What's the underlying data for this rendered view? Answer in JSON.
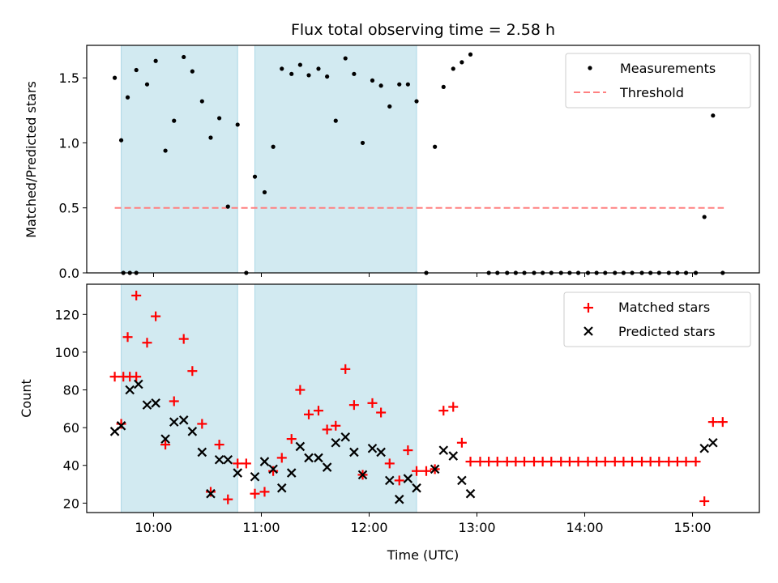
{
  "chart_data": {
    "type": "scatter",
    "title": "Flux total observing time = 2.58 h",
    "xlabel": "Time (UTC)",
    "x_ticks": [
      "10:00",
      "11:00",
      "12:00",
      "13:00",
      "14:00",
      "15:00"
    ],
    "x_tick_hours": [
      10,
      11,
      12,
      13,
      14,
      15
    ],
    "xlim_hours": [
      9.38,
      15.62
    ],
    "shaded_intervals_hours": [
      [
        9.7,
        10.78
      ],
      [
        10.94,
        12.44
      ]
    ],
    "colors": {
      "shade": "#add8e6",
      "threshold": "#ff8080",
      "measurements": "#000000",
      "matched": "#ff0000",
      "predicted": "#000000"
    },
    "top": {
      "ylabel": "Matched/Predicted stars",
      "ylim": [
        0,
        1.75
      ],
      "y_ticks": [
        "0.0",
        "0.5",
        "1.0",
        "1.5"
      ],
      "y_tick_values": [
        0,
        0.5,
        1.0,
        1.5
      ],
      "threshold": {
        "value": 0.5,
        "x_range_hours": [
          9.64,
          15.29
        ]
      },
      "legend": [
        "Measurements",
        "Threshold"
      ],
      "measurements": [
        [
          9.64,
          1.5
        ],
        [
          9.72,
          0.0
        ],
        [
          9.78,
          0.0
        ],
        [
          9.84,
          0.0
        ],
        [
          9.7,
          1.02
        ],
        [
          9.76,
          1.35
        ],
        [
          9.84,
          1.56
        ],
        [
          9.94,
          1.45
        ],
        [
          10.02,
          1.63
        ],
        [
          10.11,
          0.94
        ],
        [
          10.19,
          1.17
        ],
        [
          10.28,
          1.66
        ],
        [
          10.36,
          1.55
        ],
        [
          10.45,
          1.32
        ],
        [
          10.53,
          1.04
        ],
        [
          10.61,
          1.19
        ],
        [
          10.69,
          0.51
        ],
        [
          10.78,
          1.14
        ],
        [
          10.86,
          0.0
        ],
        [
          10.94,
          0.74
        ],
        [
          11.03,
          0.62
        ],
        [
          11.11,
          0.97
        ],
        [
          11.19,
          1.57
        ],
        [
          11.28,
          1.53
        ],
        [
          11.36,
          1.6
        ],
        [
          11.44,
          1.52
        ],
        [
          11.53,
          1.57
        ],
        [
          11.61,
          1.51
        ],
        [
          11.69,
          1.17
        ],
        [
          11.78,
          1.65
        ],
        [
          11.86,
          1.53
        ],
        [
          11.94,
          1.0
        ],
        [
          12.03,
          1.48
        ],
        [
          12.11,
          1.44
        ],
        [
          12.19,
          1.28
        ],
        [
          12.28,
          1.45
        ],
        [
          12.36,
          1.45
        ],
        [
          12.44,
          1.32
        ],
        [
          12.53,
          0.0
        ],
        [
          12.61,
          0.97
        ],
        [
          12.69,
          1.43
        ],
        [
          12.78,
          1.57
        ],
        [
          12.86,
          1.62
        ],
        [
          12.94,
          1.68
        ],
        [
          13.11,
          0.0
        ],
        [
          13.19,
          0.0
        ],
        [
          13.28,
          0.0
        ],
        [
          13.36,
          0.0
        ],
        [
          13.44,
          0.0
        ],
        [
          13.53,
          0.0
        ],
        [
          13.61,
          0.0
        ],
        [
          13.69,
          0.0
        ],
        [
          13.78,
          0.0
        ],
        [
          13.86,
          0.0
        ],
        [
          13.94,
          0.0
        ],
        [
          14.03,
          0.0
        ],
        [
          14.11,
          0.0
        ],
        [
          14.19,
          0.0
        ],
        [
          14.28,
          0.0
        ],
        [
          14.36,
          0.0
        ],
        [
          14.44,
          0.0
        ],
        [
          14.53,
          0.0
        ],
        [
          14.61,
          0.0
        ],
        [
          14.69,
          0.0
        ],
        [
          14.78,
          0.0
        ],
        [
          14.86,
          0.0
        ],
        [
          14.94,
          0.0
        ],
        [
          15.03,
          0.0
        ],
        [
          15.11,
          0.43
        ],
        [
          15.19,
          1.21
        ],
        [
          15.28,
          0.0
        ]
      ]
    },
    "bottom": {
      "ylabel": "Count",
      "ylim": [
        15,
        136
      ],
      "y_ticks": [
        "20",
        "40",
        "60",
        "80",
        "100",
        "120"
      ],
      "y_tick_values": [
        20,
        40,
        60,
        80,
        100,
        120
      ],
      "legend": [
        "Matched stars",
        "Predicted stars"
      ],
      "series": [
        {
          "name": "Matched stars",
          "marker": "plus",
          "points": [
            [
              9.64,
              87
            ],
            [
              9.72,
              87
            ],
            [
              9.78,
              87
            ],
            [
              9.84,
              87
            ],
            [
              9.7,
              62
            ],
            [
              9.76,
              108
            ],
            [
              9.84,
              130
            ],
            [
              9.94,
              105
            ],
            [
              10.02,
              119
            ],
            [
              10.11,
              51
            ],
            [
              10.19,
              74
            ],
            [
              10.28,
              107
            ],
            [
              10.36,
              90
            ],
            [
              10.45,
              62
            ],
            [
              10.53,
              26
            ],
            [
              10.61,
              51
            ],
            [
              10.69,
              22
            ],
            [
              10.78,
              41
            ],
            [
              10.86,
              41
            ],
            [
              10.94,
              25
            ],
            [
              11.03,
              26
            ],
            [
              11.11,
              37
            ],
            [
              11.19,
              44
            ],
            [
              11.28,
              54
            ],
            [
              11.36,
              80
            ],
            [
              11.44,
              67
            ],
            [
              11.53,
              69
            ],
            [
              11.61,
              59
            ],
            [
              11.69,
              61
            ],
            [
              11.78,
              91
            ],
            [
              11.86,
              72
            ],
            [
              11.94,
              35
            ],
            [
              12.03,
              73
            ],
            [
              12.11,
              68
            ],
            [
              12.19,
              41
            ],
            [
              12.28,
              32
            ],
            [
              12.36,
              48
            ],
            [
              12.44,
              37
            ],
            [
              12.53,
              37
            ],
            [
              12.61,
              38
            ],
            [
              12.69,
              69
            ],
            [
              12.78,
              71
            ],
            [
              12.86,
              52
            ],
            [
              12.94,
              42
            ],
            [
              13.03,
              42
            ],
            [
              13.11,
              42
            ],
            [
              13.19,
              42
            ],
            [
              13.28,
              42
            ],
            [
              13.36,
              42
            ],
            [
              13.44,
              42
            ],
            [
              13.53,
              42
            ],
            [
              13.61,
              42
            ],
            [
              13.69,
              42
            ],
            [
              13.78,
              42
            ],
            [
              13.86,
              42
            ],
            [
              13.94,
              42
            ],
            [
              14.03,
              42
            ],
            [
              14.11,
              42
            ],
            [
              14.19,
              42
            ],
            [
              14.28,
              42
            ],
            [
              14.36,
              42
            ],
            [
              14.44,
              42
            ],
            [
              14.53,
              42
            ],
            [
              14.61,
              42
            ],
            [
              14.69,
              42
            ],
            [
              14.78,
              42
            ],
            [
              14.86,
              42
            ],
            [
              14.94,
              42
            ],
            [
              15.03,
              42
            ],
            [
              15.11,
              21
            ],
            [
              15.19,
              63
            ],
            [
              15.28,
              63
            ]
          ]
        },
        {
          "name": "Predicted stars",
          "marker": "x",
          "points": [
            [
              9.64,
              58
            ],
            [
              9.7,
              61
            ],
            [
              9.78,
              80
            ],
            [
              9.86,
              83
            ],
            [
              9.94,
              72
            ],
            [
              10.02,
              73
            ],
            [
              10.11,
              54
            ],
            [
              10.19,
              63
            ],
            [
              10.28,
              64
            ],
            [
              10.36,
              58
            ],
            [
              10.45,
              47
            ],
            [
              10.53,
              25
            ],
            [
              10.61,
              43
            ],
            [
              10.69,
              43
            ],
            [
              10.78,
              36
            ],
            [
              10.94,
              34
            ],
            [
              11.03,
              42
            ],
            [
              11.11,
              38
            ],
            [
              11.19,
              28
            ],
            [
              11.28,
              36
            ],
            [
              11.36,
              50
            ],
            [
              11.44,
              44
            ],
            [
              11.53,
              44
            ],
            [
              11.61,
              39
            ],
            [
              11.69,
              52
            ],
            [
              11.78,
              55
            ],
            [
              11.86,
              47
            ],
            [
              11.94,
              35
            ],
            [
              12.03,
              49
            ],
            [
              12.11,
              47
            ],
            [
              12.19,
              32
            ],
            [
              12.28,
              22
            ],
            [
              12.36,
              33
            ],
            [
              12.44,
              28
            ],
            [
              12.61,
              38
            ],
            [
              12.69,
              48
            ],
            [
              12.78,
              45
            ],
            [
              12.86,
              32
            ],
            [
              12.94,
              25
            ],
            [
              15.11,
              49
            ],
            [
              15.19,
              52
            ]
          ]
        }
      ]
    }
  }
}
